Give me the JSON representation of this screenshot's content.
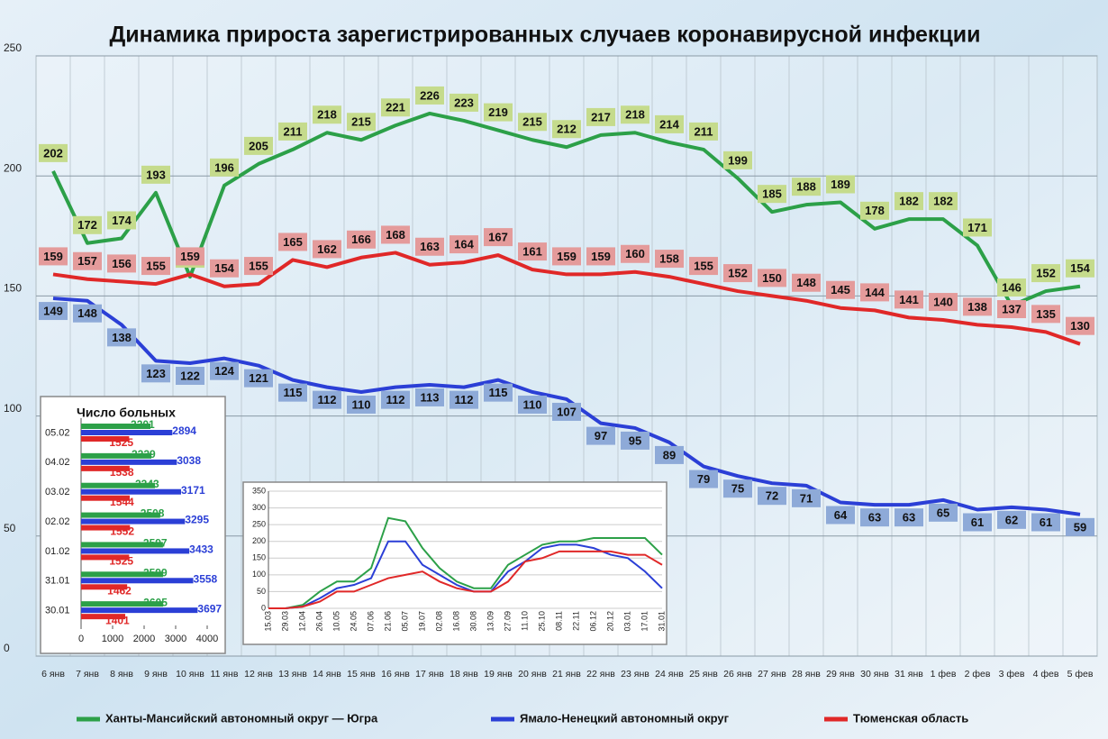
{
  "chart_data": [
    {
      "type": "line",
      "title": "Динамика прироста зарегистрированных случаев коронавирусной инфекции",
      "categories": [
        "6 янв",
        "7 янв",
        "8 янв",
        "9 янв",
        "10 янв",
        "11 янв",
        "12 янв",
        "13 янв",
        "14 янв",
        "15 янв",
        "16 янв",
        "17 янв",
        "18 янв",
        "19 янв",
        "20 янв",
        "21 янв",
        "22 янв",
        "23 янв",
        "24 янв",
        "25 янв",
        "26 янв",
        "27 янв",
        "28 янв",
        "29 янв",
        "30 янв",
        "31 янв",
        "1 фев",
        "2 фев",
        "3 фев",
        "4 фев",
        "5 фев"
      ],
      "series": [
        {
          "name": "Ханты-Мансийский автономный округ — Югра",
          "color": "#2ca048",
          "label_color": "#c5db8c",
          "values": [
            202,
            172,
            174,
            193,
            158,
            196,
            205,
            211,
            218,
            215,
            221,
            226,
            223,
            219,
            215,
            212,
            217,
            218,
            214,
            211,
            199,
            185,
            188,
            189,
            178,
            182,
            182,
            171,
            146,
            152,
            154
          ]
        },
        {
          "name": "Ямало-Ненецкий автономный округ",
          "color": "#2b3fd6",
          "label_color": "#8eaad8",
          "values": [
            149,
            148,
            138,
            123,
            122,
            124,
            121,
            115,
            112,
            110,
            112,
            113,
            112,
            115,
            110,
            107,
            97,
            95,
            89,
            79,
            75,
            72,
            71,
            64,
            63,
            63,
            65,
            61,
            62,
            61,
            59
          ]
        },
        {
          "name": "Тюменская область",
          "color": "#e02828",
          "label_color": "#e49b9b",
          "values": [
            159,
            157,
            156,
            155,
            159,
            154,
            155,
            165,
            162,
            166,
            168,
            163,
            164,
            167,
            161,
            159,
            159,
            160,
            158,
            155,
            152,
            150,
            148,
            145,
            144,
            141,
            140,
            138,
            137,
            135,
            130
          ]
        }
      ],
      "ylim": [
        0,
        250
      ],
      "yticks": [
        0,
        50,
        100,
        150,
        200,
        250
      ],
      "grid": true,
      "legend": "bottom"
    },
    {
      "type": "bar",
      "orientation": "horizontal",
      "title": "Число больных",
      "categories": [
        "05.02",
        "04.02",
        "03.02",
        "02.02",
        "01.02",
        "31.01",
        "30.01"
      ],
      "series": [
        {
          "color": "#2ca048",
          "values": [
            2201,
            2229,
            2343,
            2508,
            2597,
            2599,
            2605
          ]
        },
        {
          "color": "#2b3fd6",
          "values": [
            2894,
            3038,
            3171,
            3295,
            3433,
            3558,
            3697
          ]
        },
        {
          "color": "#e02828",
          "values": [
            1525,
            1538,
            1544,
            1552,
            1525,
            1462,
            1401
          ]
        }
      ],
      "xlim": [
        0,
        4000
      ],
      "xticks": [
        0,
        1000,
        2000,
        3000,
        4000
      ]
    },
    {
      "type": "line",
      "categories": [
        "15.03",
        "29.03",
        "12.04",
        "26.04",
        "10.05",
        "24.05",
        "07.06",
        "21.06",
        "05.07",
        "19.07",
        "02.08",
        "16.08",
        "30.08",
        "13.09",
        "27.09",
        "11.10",
        "25.10",
        "08.11",
        "22.11",
        "06.12",
        "20.12",
        "03.01",
        "17.01",
        "31.01"
      ],
      "series": [
        {
          "color": "#2ca048",
          "values": [
            0,
            0,
            10,
            50,
            80,
            80,
            120,
            270,
            260,
            180,
            120,
            80,
            60,
            60,
            130,
            160,
            190,
            200,
            200,
            210,
            210,
            210,
            210,
            160
          ]
        },
        {
          "color": "#2b3fd6",
          "values": [
            0,
            0,
            5,
            30,
            60,
            70,
            90,
            200,
            200,
            130,
            100,
            70,
            50,
            50,
            110,
            140,
            180,
            190,
            190,
            180,
            160,
            150,
            110,
            60
          ]
        },
        {
          "color": "#e02828",
          "values": [
            0,
            0,
            5,
            20,
            50,
            50,
            70,
            90,
            100,
            110,
            80,
            60,
            50,
            50,
            80,
            140,
            150,
            170,
            170,
            170,
            170,
            160,
            160,
            130
          ]
        }
      ],
      "ylim": [
        0,
        350
      ],
      "yticks": [
        0,
        50,
        100,
        150,
        200,
        250,
        300,
        350
      ],
      "grid": true
    }
  ]
}
